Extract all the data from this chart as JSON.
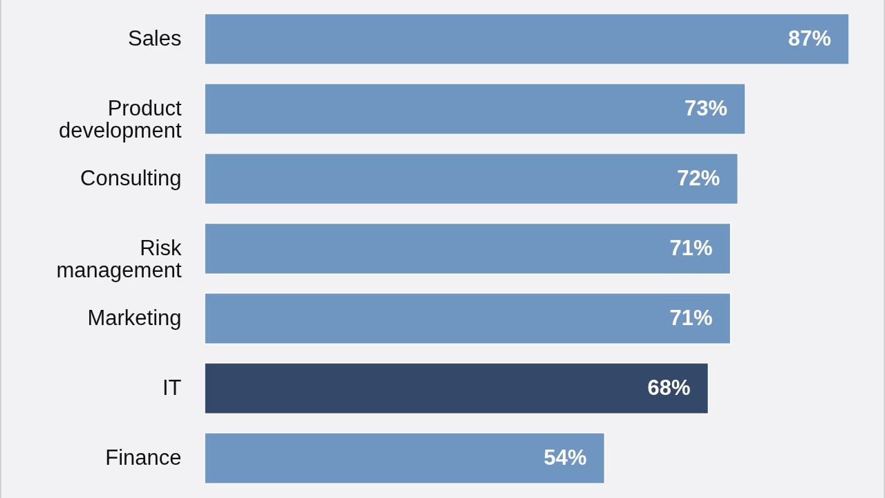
{
  "chart_data": {
    "type": "bar",
    "orientation": "horizontal",
    "categories": [
      "Sales",
      "Product development",
      "Consulting",
      "Risk management",
      "Marketing",
      "IT",
      "Finance"
    ],
    "values": [
      87,
      73,
      72,
      71,
      71,
      68,
      54
    ],
    "colors": [
      "#6f95c1",
      "#6f95c1",
      "#6f95c1",
      "#6f95c1",
      "#6f95c1",
      "#34496a",
      "#6f95c1"
    ],
    "value_labels": [
      "87%",
      "73%",
      "72%",
      "71%",
      "71%",
      "68%",
      "54%"
    ]
  }
}
